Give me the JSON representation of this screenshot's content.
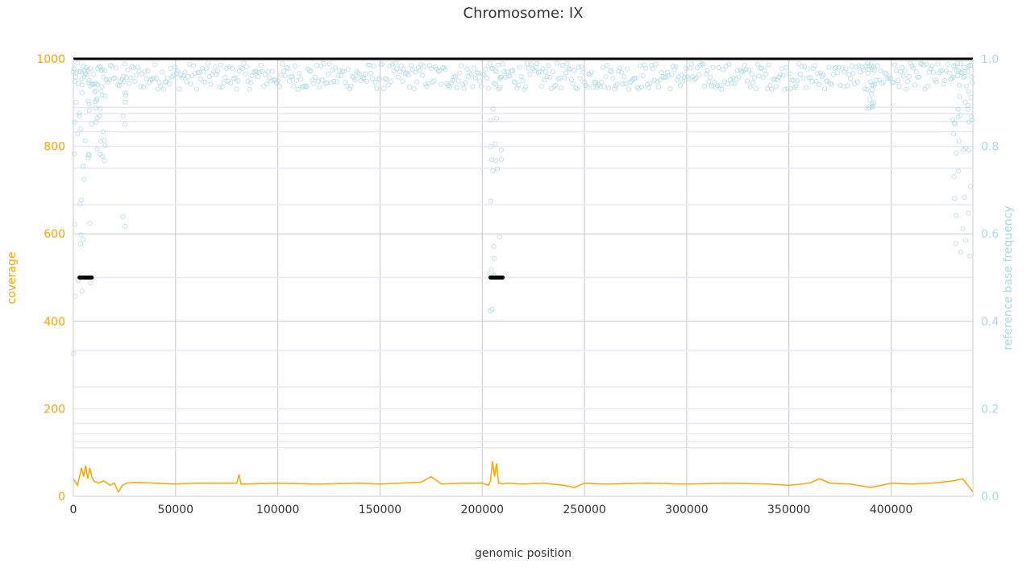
{
  "chart_data": {
    "type": "line",
    "title": "Chromosome: IX",
    "xlabel": "genomic position",
    "ylabel_left": "coverage",
    "ylabel_right": "reference base frequency",
    "xlim": [
      0,
      440000
    ],
    "ylim_left": [
      0,
      1000
    ],
    "ylim_right": [
      0.0,
      1.0
    ],
    "x_ticks": [
      0,
      50000,
      100000,
      150000,
      200000,
      250000,
      300000,
      350000,
      400000
    ],
    "x_tick_labels": [
      "0",
      "50000",
      "100000",
      "150000",
      "200000",
      "250000",
      "300000",
      "350000",
      "400000"
    ],
    "y_left_ticks": [
      0,
      200,
      400,
      600,
      800,
      1000
    ],
    "y_left_tick_labels": [
      "0",
      "200",
      "400",
      "600",
      "800",
      "1000"
    ],
    "y_right_ticks": [
      0.0,
      0.2,
      0.4,
      0.6,
      0.8,
      1.0
    ],
    "y_right_tick_labels": [
      "0.0",
      "0.2",
      "0.4",
      "0.6",
      "0.8",
      "1.0"
    ],
    "grid": true,
    "reference_lines_right": [
      0.1111,
      0.125,
      0.1429,
      0.1667,
      0.2,
      0.25,
      0.3333,
      0.5,
      0.6667,
      0.75,
      0.8,
      0.8333,
      0.8571,
      0.875,
      0.8889
    ],
    "colors": {
      "coverage": "#FFA500",
      "frequency": "#ADD8E6",
      "grid": "#C8C8C8",
      "reference_lines": "#E6E6FA",
      "markers": "#000000",
      "text": "#333333"
    },
    "coverage_series": {
      "name": "coverage",
      "x": [
        0,
        2000,
        4000,
        5000,
        6000,
        7000,
        8000,
        9000,
        10000,
        12000,
        15000,
        18000,
        20000,
        22000,
        24000,
        26000,
        30000,
        40000,
        50000,
        60000,
        80000,
        81000,
        82000,
        100000,
        120000,
        140000,
        150000,
        160000,
        170000,
        175000,
        180000,
        190000,
        200000,
        203000,
        204000,
        205000,
        206000,
        207000,
        208000,
        209000,
        210000,
        212000,
        220000,
        230000,
        240000,
        245000,
        250000,
        260000,
        280000,
        300000,
        320000,
        340000,
        350000,
        360000,
        365000,
        370000,
        380000,
        390000,
        395000,
        400000,
        410000,
        420000,
        430000,
        435000,
        440000
      ],
      "values": [
        40,
        25,
        65,
        45,
        70,
        40,
        65,
        45,
        35,
        30,
        35,
        25,
        30,
        10,
        25,
        30,
        32,
        30,
        28,
        30,
        30,
        50,
        28,
        30,
        28,
        30,
        28,
        30,
        32,
        45,
        28,
        30,
        30,
        25,
        35,
        80,
        45,
        75,
        30,
        30,
        28,
        30,
        28,
        30,
        25,
        20,
        30,
        28,
        30,
        28,
        30,
        28,
        25,
        30,
        40,
        30,
        28,
        20,
        25,
        30,
        28,
        30,
        35,
        40,
        10
      ]
    },
    "frequency_series": {
      "name": "reference base frequency",
      "baseline_range": [
        0.93,
        0.99
      ],
      "dips": [
        {
          "x_range": [
            0,
            10000
          ],
          "min": 0.31
        },
        {
          "x_range": [
            10000,
            16000
          ],
          "min": 0.75
        },
        {
          "x_range": [
            24000,
            26000
          ],
          "min": 0.57
        },
        {
          "x_range": [
            204000,
            210000
          ],
          "min": 0.38
        },
        {
          "x_range": [
            388000,
            392000
          ],
          "min": 0.83
        },
        {
          "x_range": [
            430000,
            440000
          ],
          "min": 0.51
        }
      ]
    },
    "marker_segments": [
      {
        "x_range": [
          3000,
          9000
        ],
        "y": 500
      },
      {
        "x_range": [
          204000,
          210000
        ],
        "y": 500
      }
    ],
    "top_line": {
      "y": 1000
    }
  }
}
